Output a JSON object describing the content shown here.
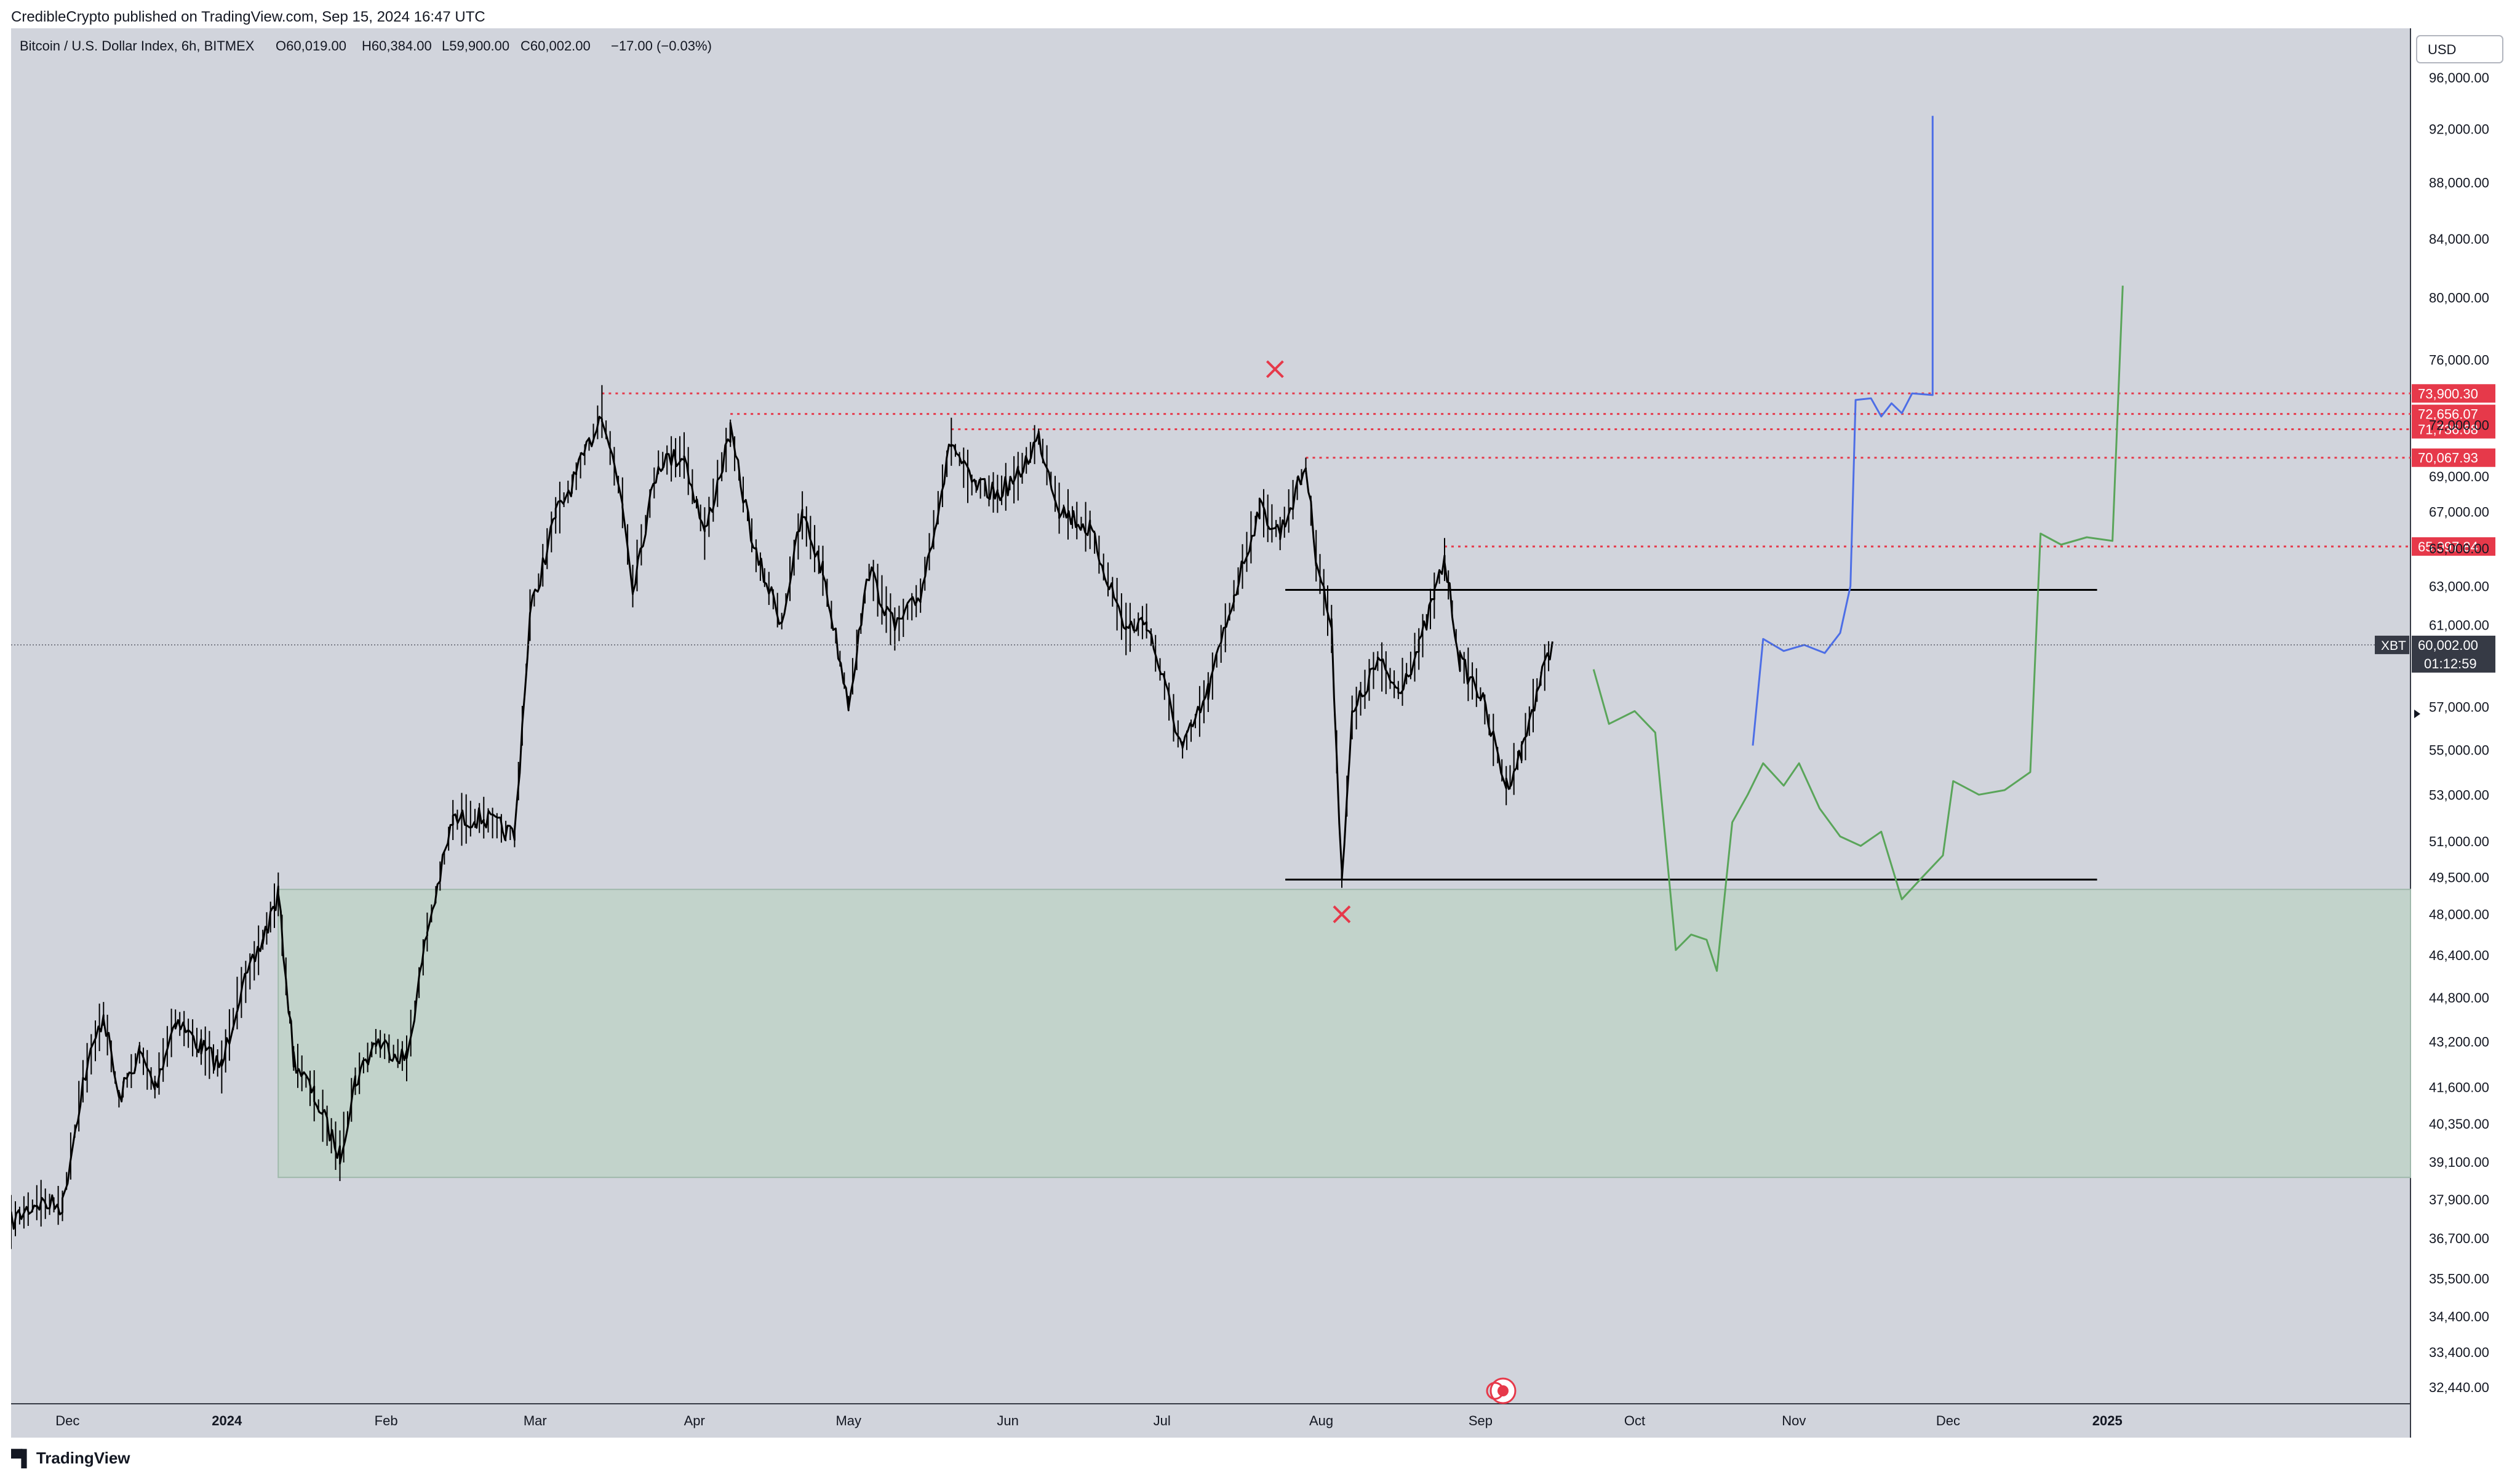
{
  "header": {
    "publisher_line": "CredibleCrypto published on TradingView.com, Sep 15, 2024 16:47 UTC"
  },
  "footer": {
    "brand": "TradingView"
  },
  "chart_data": {
    "type": "candlestick",
    "symbol_line": {
      "name": "Bitcoin / U.S. Dollar Index, 6h, BITMEX",
      "open_label": "O",
      "open": "60,019.00",
      "high_label": "H",
      "high": "60,384.00",
      "low_label": "L",
      "low": "59,900.00",
      "close_label": "C",
      "close": "60,002.00",
      "change": "−17.00 (−0.03%)"
    },
    "currency_button": "USD",
    "yaxis": {
      "scale": "log",
      "range": [
        32000,
        100000
      ],
      "ticks": [
        96000,
        92000,
        88000,
        84000,
        80000,
        76000,
        72000,
        69000,
        67000,
        65000,
        63000,
        61000,
        57000,
        55000,
        53000,
        51000,
        49500,
        48000,
        46400,
        44800,
        43200,
        41600,
        40350,
        39100,
        37900,
        36700,
        35500,
        34400,
        33400,
        32440
      ],
      "tick_labels": [
        "96,000.00",
        "92,000.00",
        "88,000.00",
        "84,000.00",
        "80,000.00",
        "76,000.00",
        "72,000.00",
        "69,000.00",
        "67,000.00",
        "65,000.00",
        "63,000.00",
        "61,000.00",
        "57,000.00",
        "55,000.00",
        "53,000.00",
        "51,000.00",
        "49,500.00",
        "48,000.00",
        "46,400.00",
        "44,800.00",
        "43,200.00",
        "41,600.00",
        "40,350.00",
        "39,100.00",
        "37,900.00",
        "36,700.00",
        "35,500.00",
        "34,400.00",
        "33,400.00",
        "32,440.00"
      ]
    },
    "xaxis": {
      "range": [
        "2023-11-20",
        "2025-03-01"
      ],
      "ticks": [
        {
          "date": "2023-12-01",
          "label": "Dec",
          "bold": false
        },
        {
          "date": "2024-01-01",
          "label": "2024",
          "bold": true
        },
        {
          "date": "2024-02-01",
          "label": "Feb",
          "bold": false
        },
        {
          "date": "2024-03-01",
          "label": "Mar",
          "bold": false
        },
        {
          "date": "2024-04-01",
          "label": "Apr",
          "bold": false
        },
        {
          "date": "2024-05-01",
          "label": "May",
          "bold": false
        },
        {
          "date": "2024-06-01",
          "label": "Jun",
          "bold": false
        },
        {
          "date": "2024-07-01",
          "label": "Jul",
          "bold": false
        },
        {
          "date": "2024-08-01",
          "label": "Aug",
          "bold": false
        },
        {
          "date": "2024-09-01",
          "label": "Sep",
          "bold": false
        },
        {
          "date": "2024-10-01",
          "label": "Oct",
          "bold": false
        },
        {
          "date": "2024-11-01",
          "label": "Nov",
          "bold": false
        },
        {
          "date": "2024-12-01",
          "label": "Dec",
          "bold": false
        },
        {
          "date": "2025-01-01",
          "label": "2025",
          "bold": true
        }
      ]
    },
    "price_path": [
      [
        "2023-11-20",
        37200
      ],
      [
        "2023-11-25",
        37800
      ],
      [
        "2023-11-30",
        37700
      ],
      [
        "2023-12-04",
        41800
      ],
      [
        "2023-12-08",
        44200
      ],
      [
        "2023-12-11",
        41200
      ],
      [
        "2023-12-15",
        42800
      ],
      [
        "2023-12-18",
        41600
      ],
      [
        "2023-12-22",
        44000
      ],
      [
        "2023-12-27",
        43000
      ],
      [
        "2023-12-31",
        42300
      ],
      [
        "2024-01-03",
        44600
      ],
      [
        "2024-01-08",
        47000
      ],
      [
        "2024-01-11",
        48800
      ],
      [
        "2024-01-14",
        42600
      ],
      [
        "2024-01-18",
        41300
      ],
      [
        "2024-01-23",
        39300
      ],
      [
        "2024-01-26",
        41800
      ],
      [
        "2024-01-30",
        43200
      ],
      [
        "2024-02-05",
        42600
      ],
      [
        "2024-02-09",
        47300
      ],
      [
        "2024-02-14",
        51900
      ],
      [
        "2024-02-20",
        52000
      ],
      [
        "2024-02-26",
        51200
      ],
      [
        "2024-02-29",
        61500
      ],
      [
        "2024-03-05",
        66800
      ],
      [
        "2024-03-09",
        69000
      ],
      [
        "2024-03-14",
        72800
      ],
      [
        "2024-03-18",
        67500
      ],
      [
        "2024-03-20",
        63000
      ],
      [
        "2024-03-25",
        69800
      ],
      [
        "2024-03-30",
        70200
      ],
      [
        "2024-04-03",
        65800
      ],
      [
        "2024-04-08",
        71500
      ],
      [
        "2024-04-13",
        64600
      ],
      [
        "2024-04-18",
        61200
      ],
      [
        "2024-04-22",
        66800
      ],
      [
        "2024-04-26",
        63800
      ],
      [
        "2024-05-01",
        57200
      ],
      [
        "2024-05-05",
        63800
      ],
      [
        "2024-05-10",
        60800
      ],
      [
        "2024-05-15",
        62500
      ],
      [
        "2024-05-21",
        71000
      ],
      [
        "2024-05-25",
        68500
      ],
      [
        "2024-05-30",
        68000
      ],
      [
        "2024-06-03",
        69000
      ],
      [
        "2024-06-07",
        71300
      ],
      [
        "2024-06-11",
        67200
      ],
      [
        "2024-06-17",
        66000
      ],
      [
        "2024-06-24",
        60800
      ],
      [
        "2024-06-28",
        61200
      ],
      [
        "2024-07-05",
        55000
      ],
      [
        "2024-07-10",
        57700
      ],
      [
        "2024-07-15",
        62500
      ],
      [
        "2024-07-20",
        67200
      ],
      [
        "2024-07-24",
        65800
      ],
      [
        "2024-07-29",
        69600
      ],
      [
        "2024-07-31",
        64600
      ],
      [
        "2024-08-03",
        60800
      ],
      [
        "2024-08-05",
        49600
      ],
      [
        "2024-08-07",
        56500
      ],
      [
        "2024-08-12",
        59200
      ],
      [
        "2024-08-16",
        57800
      ],
      [
        "2024-08-20",
        59800
      ],
      [
        "2024-08-23",
        62500
      ],
      [
        "2024-08-25",
        64400
      ],
      [
        "2024-08-28",
        59200
      ],
      [
        "2024-09-01",
        57600
      ],
      [
        "2024-09-06",
        53400
      ],
      [
        "2024-09-09",
        54900
      ],
      [
        "2024-09-12",
        57800
      ],
      [
        "2024-09-15",
        60002
      ]
    ],
    "green_zone": {
      "start": "2024-01-11",
      "end": "2025-03-01",
      "low": 38600,
      "high": 49000
    },
    "dotted_levels": [
      {
        "price": 73900.3,
        "from": "2024-03-14",
        "label": "73,900.30"
      },
      {
        "price": 72656.07,
        "from": "2024-04-08",
        "label": "72,656.07"
      },
      {
        "price": 71736.68,
        "from": "2024-05-21",
        "label": "71,736.68"
      },
      {
        "price": 70067.93,
        "from": "2024-07-29",
        "label": "70,067.93"
      },
      {
        "price": 65097.84,
        "from": "2024-08-25",
        "label": "65,097.84"
      }
    ],
    "range_lines": [
      {
        "price": 62800,
        "from": "2024-07-25",
        "to": "2024-12-30"
      },
      {
        "price": 49400,
        "from": "2024-07-25",
        "to": "2024-12-30"
      }
    ],
    "x_marks": [
      {
        "date": "2024-07-23",
        "price": 75400
      },
      {
        "date": "2024-08-05",
        "price": 48000
      }
    ],
    "projection_blue": [
      [
        "2024-10-24",
        55200
      ],
      [
        "2024-10-26",
        60300
      ],
      [
        "2024-10-30",
        59700
      ],
      [
        "2024-11-03",
        60000
      ],
      [
        "2024-11-07",
        59600
      ],
      [
        "2024-11-10",
        60600
      ],
      [
        "2024-11-12",
        63000
      ],
      [
        "2024-11-13",
        73500
      ],
      [
        "2024-11-16",
        73600
      ],
      [
        "2024-11-18",
        72500
      ],
      [
        "2024-11-20",
        73300
      ],
      [
        "2024-11-22",
        72700
      ],
      [
        "2024-11-24",
        73900
      ],
      [
        "2024-11-28",
        73800
      ],
      [
        "2024-11-28",
        93000
      ]
    ],
    "projection_green": [
      [
        "2024-09-23",
        58800
      ],
      [
        "2024-09-26",
        56200
      ],
      [
        "2024-10-01",
        56800
      ],
      [
        "2024-10-05",
        55800
      ],
      [
        "2024-10-09",
        46600
      ],
      [
        "2024-10-12",
        47200
      ],
      [
        "2024-10-15",
        47000
      ],
      [
        "2024-10-17",
        45800
      ],
      [
        "2024-10-20",
        51800
      ],
      [
        "2024-10-23",
        53000
      ],
      [
        "2024-10-26",
        54400
      ],
      [
        "2024-10-30",
        53400
      ],
      [
        "2024-11-02",
        54400
      ],
      [
        "2024-11-06",
        52400
      ],
      [
        "2024-11-10",
        51200
      ],
      [
        "2024-11-14",
        50800
      ],
      [
        "2024-11-18",
        51400
      ],
      [
        "2024-11-22",
        48600
      ],
      [
        "2024-11-26",
        49500
      ],
      [
        "2024-11-30",
        50400
      ],
      [
        "2024-12-02",
        53600
      ],
      [
        "2024-12-07",
        53000
      ],
      [
        "2024-12-12",
        53200
      ],
      [
        "2024-12-17",
        54000
      ],
      [
        "2024-12-19",
        65800
      ],
      [
        "2024-12-23",
        65200
      ],
      [
        "2024-12-28",
        65600
      ],
      [
        "2025-01-02",
        65400
      ],
      [
        "2025-01-04",
        80800
      ]
    ],
    "current_price": {
      "price": 60002,
      "name_tag": "XBT",
      "value_label": "60,002.00",
      "countdown": "01:12:59"
    },
    "colors": {
      "background": "#d1d4dc",
      "green_zone": "#c2d3cb",
      "candles": "#000000",
      "level_red": "#e6394a",
      "projection_blue": "#4d6ee6",
      "projection_green": "#5aa55a",
      "range_line": "#000000"
    }
  }
}
